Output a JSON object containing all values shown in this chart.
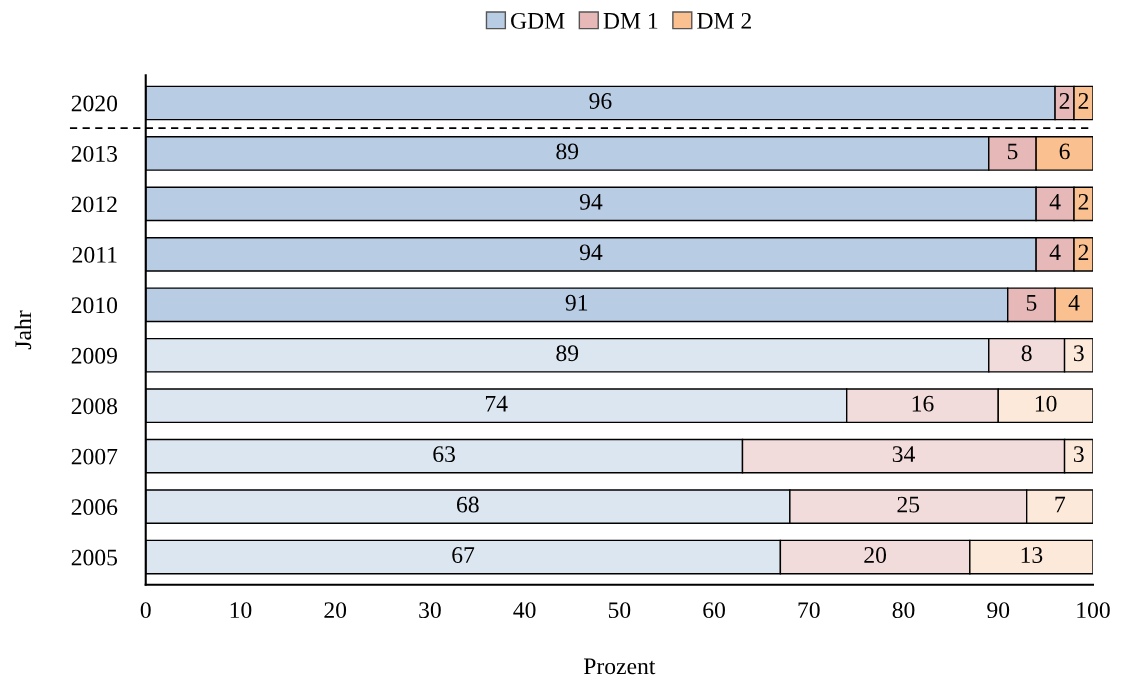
{
  "chart_data": {
    "type": "bar",
    "orientation": "horizontal",
    "stacked": true,
    "data_labels": true,
    "xlabel": "Prozent",
    "ylabel": "Jahr",
    "categories": [
      "2020",
      "2013",
      "2012",
      "2011",
      "2010",
      "2009",
      "2008",
      "2007",
      "2006",
      "2005"
    ],
    "series": [
      {
        "name": "GDM",
        "color": "#b8cce4",
        "colors": [
          "#b8cce4",
          "#b8cce4",
          "#b8cce4",
          "#b8cce4",
          "#b8cce4",
          "#dce6f1",
          "#dce6f1",
          "#dce6f1",
          "#dce6f1",
          "#dce6f1"
        ],
        "values": [
          96,
          89,
          94,
          94,
          91,
          89,
          74,
          63,
          68,
          67
        ]
      },
      {
        "name": "DM 1",
        "color": "#e6b8b7",
        "colors": [
          "#e6b8b7",
          "#e6b8b7",
          "#e6b8b7",
          "#e6b8b7",
          "#e6b8b7",
          "#f2dcdb",
          "#f2dcdb",
          "#f2dcdb",
          "#f2dcdb",
          "#f2dcdb"
        ],
        "values": [
          2,
          5,
          4,
          4,
          5,
          8,
          16,
          34,
          25,
          20
        ]
      },
      {
        "name": "DM 2",
        "color": "#fac090",
        "colors": [
          "#fac090",
          "#fac090",
          "#fac090",
          "#fac090",
          "#fac090",
          "#fde9d9",
          "#fde9d9",
          "#fde9d9",
          "#fde9d9",
          "#fde9d9"
        ],
        "values": [
          2,
          6,
          2,
          2,
          4,
          3,
          10,
          3,
          7,
          13
        ]
      }
    ],
    "xlim": [
      0,
      100
    ],
    "xticks": [
      0,
      10,
      20,
      30,
      40,
      50,
      60,
      70,
      80,
      90,
      100
    ],
    "grid": false,
    "legend": "top"
  }
}
